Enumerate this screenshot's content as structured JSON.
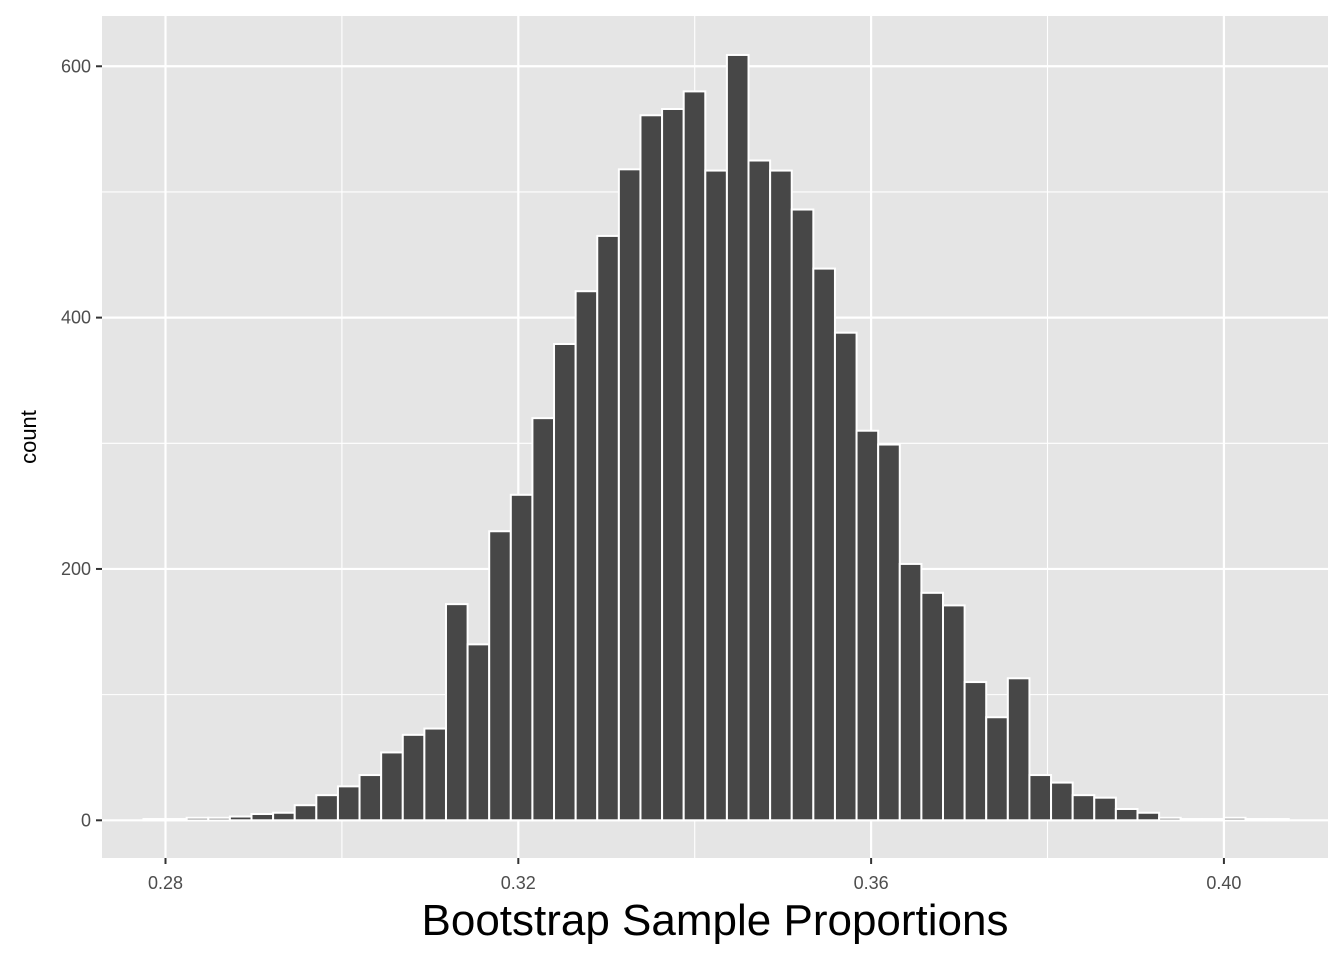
{
  "colors": {
    "panel_background": "#e5e5e5",
    "grid": "#ffffff",
    "bar_fill": "#474747",
    "bar_outline": "#ffffff",
    "tick_mark": "#333333"
  },
  "chart_data": {
    "type": "bar",
    "subtype": "histogram",
    "title": "",
    "xlabel": "Bootstrap Sample Proportions",
    "ylabel": "count",
    "xlim": [
      0.2728,
      0.4118
    ],
    "ylim": [
      -30,
      640
    ],
    "grid": true,
    "x_ticks": [
      {
        "value": 0.28,
        "label": "0.28"
      },
      {
        "value": 0.32,
        "label": "0.32"
      },
      {
        "value": 0.36,
        "label": "0.36"
      },
      {
        "value": 0.4,
        "label": "0.40"
      }
    ],
    "y_ticks": [
      {
        "value": 0,
        "label": "0"
      },
      {
        "value": 200,
        "label": "200"
      },
      {
        "value": 400,
        "label": "400"
      },
      {
        "value": 600,
        "label": "600"
      }
    ],
    "bin_start": 0.2775,
    "bin_width": 0.00245,
    "counts": [
      1,
      1,
      2,
      2,
      3,
      5,
      6,
      12,
      20,
      27,
      36,
      54,
      68,
      73,
      172,
      140,
      230,
      259,
      320,
      379,
      421,
      465,
      518,
      561,
      566,
      580,
      517,
      609,
      525,
      517,
      486,
      439,
      388,
      310,
      299,
      204,
      181,
      171,
      110,
      82,
      113,
      36,
      30,
      20,
      18,
      9,
      6,
      2,
      1,
      1,
      2,
      1,
      1
    ]
  }
}
